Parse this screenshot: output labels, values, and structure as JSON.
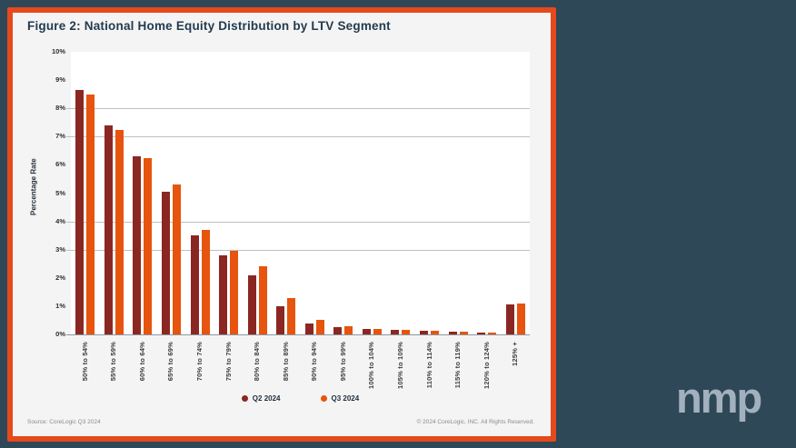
{
  "window": {
    "background": "#2e4858"
  },
  "panel": {
    "border_color": "#e5491c",
    "background": "#f4f4f4"
  },
  "header": {
    "title": "Figure 2: National Home Equity Distribution by LTV Segment"
  },
  "chart_data": {
    "type": "bar",
    "title": "Figure 2: National Home Equity Distribution by LTV Segment",
    "xlabel": "",
    "ylabel": "Percentage Rate",
    "ylim": [
      0,
      10
    ],
    "ytick_values": [
      0,
      1,
      2,
      3,
      4,
      5,
      6,
      7,
      8,
      9,
      10
    ],
    "ytick_labels": [
      "0%",
      "1%",
      "2%",
      "3%",
      "4%",
      "5%",
      "6%",
      "7%",
      "8%",
      "9%",
      "10%"
    ],
    "gridlines_at": [
      3,
      4,
      7,
      8
    ],
    "grid": "partial-horizontal",
    "plot_background": "#ffffff",
    "gridline_color": "#bcc1c4",
    "baseline_color": "#8f969c",
    "legend_position": "bottom",
    "categories": [
      "50% to 54%",
      "55% to 59%",
      "60% to 64%",
      "65% to 69%",
      "70% to 74%",
      "75% to 79%",
      "80% to 84%",
      "85% to 89%",
      "90% to 94%",
      "95% to 99%",
      "100% to 104%",
      "105% to 109%",
      "110% to 114%",
      "115% to 119%",
      "120% to 124%",
      "125% +"
    ],
    "series": [
      {
        "name": "Q2 2024",
        "color": "#8b2722",
        "values": [
          8.65,
          7.4,
          6.3,
          5.05,
          3.5,
          2.8,
          2.1,
          1.0,
          0.4,
          0.25,
          0.2,
          0.15,
          0.12,
          0.1,
          0.08,
          1.05
        ]
      },
      {
        "name": "Q3 2024",
        "color": "#e6540e",
        "values": [
          8.5,
          7.25,
          6.25,
          5.3,
          3.7,
          2.95,
          2.4,
          1.3,
          0.5,
          0.28,
          0.2,
          0.16,
          0.12,
          0.09,
          0.07,
          1.1
        ]
      }
    ]
  },
  "footer": {
    "source": "Source: CoreLogic Q3 2024",
    "copyright": "© 2024 CoreLogic, INC. All Rights Reserved."
  },
  "logo": {
    "text": "nmp"
  }
}
